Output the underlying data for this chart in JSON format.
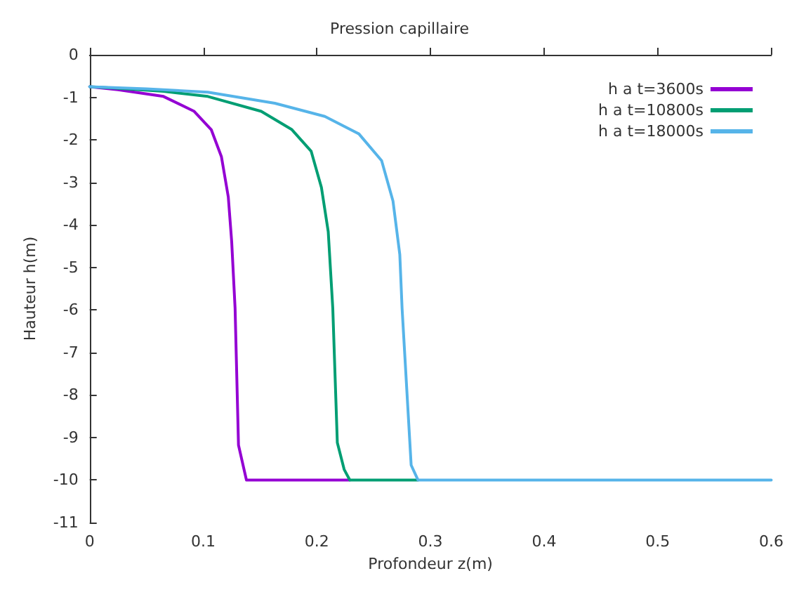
{
  "chart_data": {
    "type": "line",
    "title": "Pression capillaire",
    "xlabel": "Profondeur z(m)",
    "ylabel": "Hauteur h(m)",
    "xlim": [
      0,
      0.6
    ],
    "xticks": [
      0,
      0.1,
      0.2,
      0.3,
      0.4,
      0.5,
      0.6
    ],
    "ylim": [
      -11,
      0
    ],
    "yticks": [
      -11,
      -10,
      -9,
      -8,
      -7,
      -6,
      -5,
      -4,
      -3,
      -2,
      -1,
      0
    ],
    "grid": false,
    "legend": "top right",
    "marker": "none",
    "line_style": "solid",
    "series": [
      {
        "name": "h a t=3600s",
        "color": "#9400d3",
        "x": [
          0,
          0.025,
          0.065,
          0.092,
          0.107,
          0.116,
          0.122,
          0.125,
          0.128,
          0.131,
          0.138,
          0.229
        ],
        "values": [
          -0.75,
          -0.82,
          -0.98,
          -1.33,
          -1.76,
          -2.4,
          -3.34,
          -4.39,
          -5.96,
          -9.18,
          -10,
          -10
        ]
      },
      {
        "name": "h a t=10800s",
        "color": "#009e73",
        "x": [
          0,
          0.025,
          0.065,
          0.104,
          0.151,
          0.178,
          0.195,
          0.204,
          0.21,
          0.214,
          0.218,
          0.224,
          0.229,
          0.289
        ],
        "values": [
          -0.75,
          -0.79,
          -0.86,
          -0.98,
          -1.33,
          -1.76,
          -2.27,
          -3.12,
          -4.16,
          -5.96,
          -9.12,
          -9.75,
          -10,
          -10
        ]
      },
      {
        "name": "h a t=18000s",
        "color": "#56b4e9",
        "x": [
          0,
          0.05,
          0.104,
          0.163,
          0.207,
          0.237,
          0.257,
          0.267,
          0.273,
          0.275,
          0.283,
          0.289,
          0.6
        ],
        "values": [
          -0.75,
          -0.8,
          -0.88,
          -1.14,
          -1.45,
          -1.86,
          -2.49,
          -3.44,
          -4.7,
          -5.96,
          -9.65,
          -10,
          -10
        ]
      }
    ]
  }
}
